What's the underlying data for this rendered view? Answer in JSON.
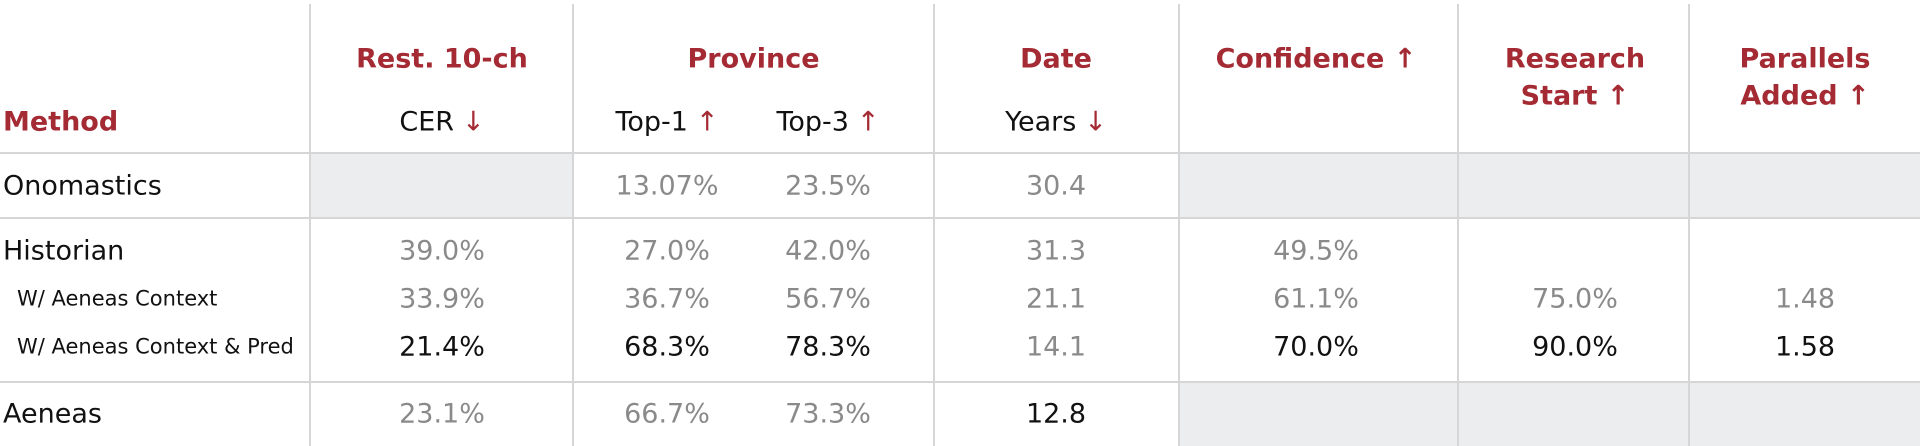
{
  "table": {
    "header": {
      "method": "Method",
      "groups": [
        {
          "title": [
            "Rest. 10-ch"
          ],
          "sub": [
            {
              "label": "CER",
              "arrow": "↓"
            }
          ]
        },
        {
          "title": [
            "Province"
          ],
          "sub": [
            {
              "label": "Top-1",
              "arrow": "↑"
            },
            {
              "label": "Top-3",
              "arrow": "↑"
            }
          ]
        },
        {
          "title": [
            "Date"
          ],
          "sub": [
            {
              "label": "Years",
              "arrow": "↓"
            }
          ]
        },
        {
          "title": [
            "Confidence ↑"
          ],
          "sub": []
        },
        {
          "title": [
            "Research",
            "Start ↑"
          ],
          "sub": []
        },
        {
          "title": [
            "Parallels",
            "Added ↑"
          ],
          "sub": []
        }
      ]
    },
    "sections": [
      {
        "rows": [
          {
            "label": "Onomastics",
            "sub": false,
            "shaded": true,
            "values": [
              null,
              "13.07%",
              "23.5%",
              "30.4",
              null,
              null,
              null
            ],
            "best": [
              false,
              false,
              false,
              false,
              false,
              false,
              false
            ]
          }
        ]
      },
      {
        "rows": [
          {
            "label": "Historian",
            "sub": false,
            "shaded": false,
            "values": [
              "39.0%",
              "27.0%",
              "42.0%",
              "31.3",
              "49.5%",
              null,
              null
            ],
            "best": [
              false,
              false,
              false,
              false,
              false,
              false,
              false
            ]
          },
          {
            "label": "W/ Aeneas Context",
            "sub": true,
            "shaded": false,
            "values": [
              "33.9%",
              "36.7%",
              "56.7%",
              "21.1",
              "61.1%",
              "75.0%",
              "1.48"
            ],
            "best": [
              false,
              false,
              false,
              false,
              false,
              false,
              false
            ]
          },
          {
            "label": "W/ Aeneas Context & Pred",
            "sub": true,
            "shaded": false,
            "values": [
              "21.4%",
              "68.3%",
              "78.3%",
              "14.1",
              "70.0%",
              "90.0%",
              "1.58"
            ],
            "best": [
              true,
              true,
              true,
              false,
              true,
              true,
              true
            ]
          }
        ]
      },
      {
        "rows": [
          {
            "label": "Aeneas",
            "sub": false,
            "shaded": true,
            "values": [
              "23.1%",
              "66.7%",
              "73.3%",
              "12.8",
              null,
              null,
              null
            ],
            "best": [
              false,
              false,
              false,
              true,
              false,
              false,
              false
            ]
          }
        ]
      }
    ]
  }
}
